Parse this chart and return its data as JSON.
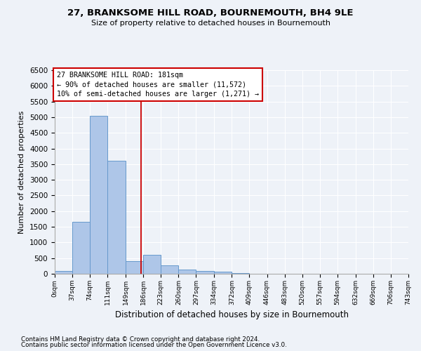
{
  "title1": "27, BRANKSOME HILL ROAD, BOURNEMOUTH, BH4 9LE",
  "title2": "Size of property relative to detached houses in Bournemouth",
  "xlabel": "Distribution of detached houses by size in Bournemouth",
  "ylabel": "Number of detached properties",
  "footnote1": "Contains HM Land Registry data © Crown copyright and database right 2024.",
  "footnote2": "Contains public sector information licensed under the Open Government Licence v3.0.",
  "bar_edges": [
    0,
    37,
    74,
    111,
    149,
    186,
    223,
    260,
    297,
    334,
    372,
    409,
    446,
    483,
    520,
    557,
    594,
    632,
    669,
    706,
    743
  ],
  "bar_heights": [
    100,
    1650,
    5050,
    3600,
    400,
    600,
    280,
    140,
    90,
    60,
    20,
    0,
    0,
    0,
    0,
    0,
    0,
    0,
    0,
    0
  ],
  "bar_color": "#aec6e8",
  "bar_edgecolor": "#6699cc",
  "property_size": 181,
  "vline_color": "#cc0000",
  "annotation_line1": "27 BRANKSOME HILL ROAD: 181sqm",
  "annotation_line2": "← 90% of detached houses are smaller (11,572)",
  "annotation_line3": "10% of semi-detached houses are larger (1,271) →",
  "annotation_box_color": "#cc0000",
  "ylim": [
    0,
    6500
  ],
  "xlim": [
    0,
    743
  ],
  "bg_color": "#eef2f8",
  "grid_color": "#ffffff",
  "tick_labels": [
    "0sqm",
    "37sqm",
    "74sqm",
    "111sqm",
    "149sqm",
    "186sqm",
    "223sqm",
    "260sqm",
    "297sqm",
    "334sqm",
    "372sqm",
    "409sqm",
    "446sqm",
    "483sqm",
    "520sqm",
    "557sqm",
    "594sqm",
    "632sqm",
    "669sqm",
    "706sqm",
    "743sqm"
  ],
  "yticks": [
    0,
    500,
    1000,
    1500,
    2000,
    2500,
    3000,
    3500,
    4000,
    4500,
    5000,
    5500,
    6000,
    6500
  ]
}
